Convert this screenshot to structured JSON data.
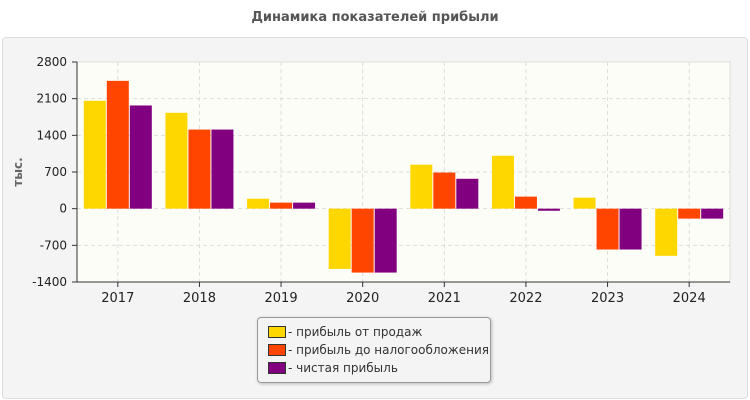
{
  "chart_data": {
    "type": "bar",
    "title": "Динамика показателей прибыли",
    "ylabel": "тыс.",
    "xlabel": "",
    "categories": [
      "2017",
      "2018",
      "2019",
      "2020",
      "2021",
      "2022",
      "2023",
      "2024"
    ],
    "ylim": [
      -1400,
      2800
    ],
    "yticks": [
      -1400,
      -700,
      0,
      700,
      1400,
      2100,
      2800
    ],
    "grid": true,
    "legend_position": "bottom",
    "series": [
      {
        "name": "- прибыль от продаж",
        "color": "#FFD700",
        "values": [
          2060,
          1830,
          190,
          -1150,
          840,
          1010,
          210,
          -900
        ]
      },
      {
        "name": "- прибыль до налогообложения",
        "color": "#FF4500",
        "values": [
          2440,
          1510,
          115,
          -1220,
          690,
          230,
          -780,
          -190
        ]
      },
      {
        "name": "- чистая прибыль",
        "color": "#800080",
        "values": [
          1970,
          1510,
          115,
          -1220,
          570,
          -40,
          -780,
          -190
        ]
      }
    ]
  }
}
